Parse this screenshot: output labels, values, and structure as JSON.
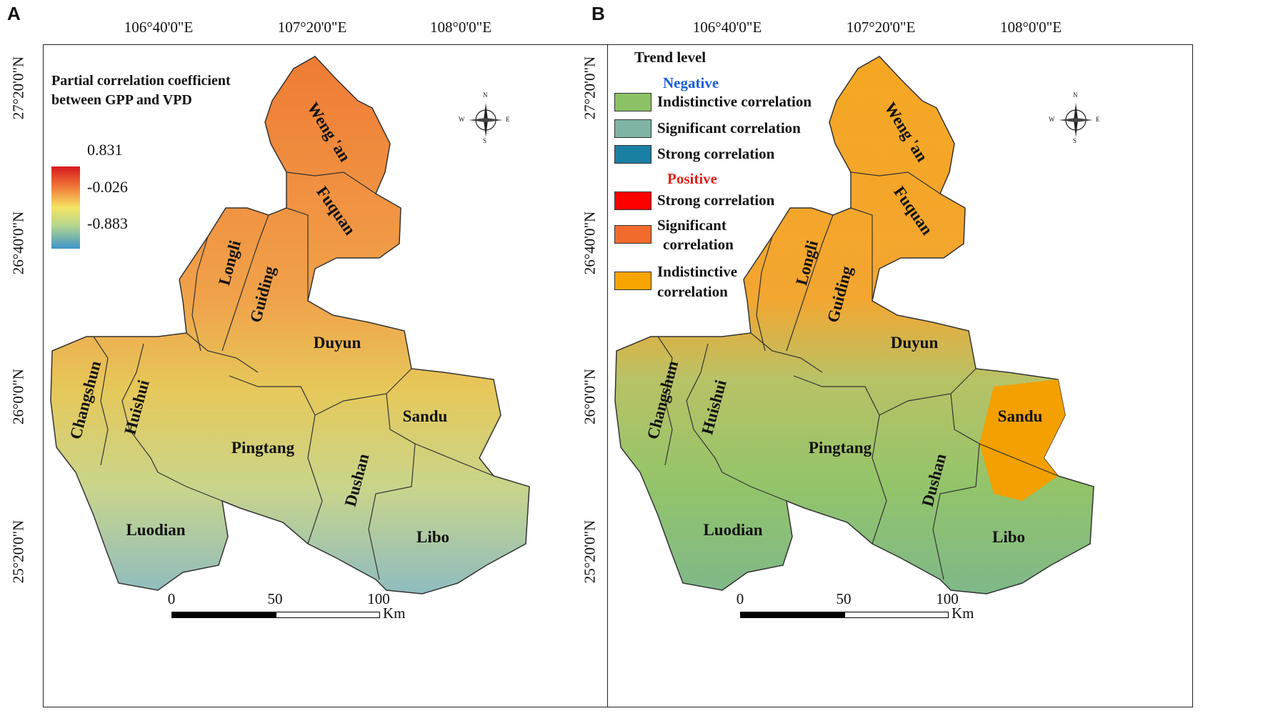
{
  "panels": [
    {
      "letter": "A",
      "lon_labels": [
        "106°40'0\"E",
        "107°20'0\"E",
        "108°0'0\"E"
      ],
      "lat_labels": [
        "27°20'0\"N",
        "26°40'0\"N",
        "26°0'0\"N",
        "25°20'0\"N"
      ],
      "legend": {
        "title_line1": "Partial correlation coefficient",
        "title_line2": "between GPP and VPD",
        "max": "0.831",
        "mid": "-0.026",
        "min": "-0.883"
      }
    },
    {
      "letter": "B",
      "lon_labels": [
        "106°40'0\"E",
        "107°20'0\"E",
        "108°0'0\"E"
      ],
      "lat_labels": [
        "27°20'0\"N",
        "26°40'0\"N",
        "26°0'0\"N",
        "25°20'0\"N"
      ],
      "legend": {
        "title": "Trend level",
        "negative_header": "Negative",
        "positive_header": "Positive",
        "negative_items": [
          {
            "label": "Indistinctive  correlation",
            "color": "#8cc265"
          },
          {
            "label": "Significant  correlation",
            "color": "#7fb3a5"
          },
          {
            "label": "Strong  correlation",
            "color": "#1b7fa3"
          }
        ],
        "positive_items": [
          {
            "label": "Strong  correlation",
            "color": "#ff0000"
          },
          {
            "label_line1": "Significant",
            "label_line2": "correlation",
            "color": "#f26b2e"
          },
          {
            "label_line1": "Indistinctive",
            "label_line2": "correlation",
            "color": "#f7a400"
          }
        ]
      }
    }
  ],
  "counties": [
    "Weng 'an",
    "Fuquan",
    "Longli",
    "Guiding",
    "Duyun",
    "Changshun",
    "Huishui",
    "Pingtang",
    "Sandu",
    "Dushan",
    "Luodian",
    "Libo"
  ],
  "scale": {
    "ticks": [
      "0",
      "50",
      "100"
    ],
    "unit": "Km"
  },
  "compass": {
    "n": "N",
    "s": "S",
    "e": "E",
    "w": "W"
  },
  "colors": {
    "negative_header": "#1a5fd6",
    "positive_header": "#e0221a",
    "a_north": "#ef7b35",
    "a_mid": "#e6c85a",
    "a_south": "#8fbcc0"
  }
}
